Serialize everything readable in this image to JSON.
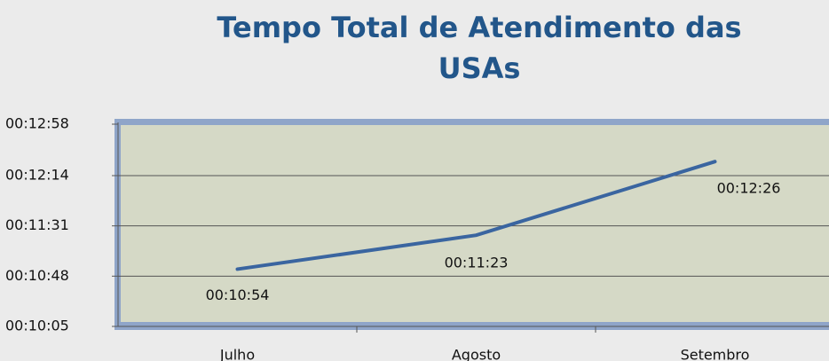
{
  "chart_data": {
    "type": "line",
    "title": "Tempo Total de Atendimento das USAs",
    "categories": [
      "Julho",
      "Agosto",
      "Setembro"
    ],
    "series": [
      {
        "name": null,
        "color": "#3A65A0",
        "values": [
          654,
          683,
          746
        ],
        "value_labels": [
          "00:10:54",
          "00:11:23",
          "00:12:26"
        ]
      }
    ],
    "ylim": [
      605,
      778
    ],
    "yticks": [
      {
        "value": 605,
        "label": "00:10:05"
      },
      {
        "value": 648,
        "label": "00:10:48"
      },
      {
        "value": 691,
        "label": "00:11:31"
      },
      {
        "value": 734,
        "label": "00:12:14"
      },
      {
        "value": 778,
        "label": "00:12:58"
      }
    ],
    "grid": true
  }
}
